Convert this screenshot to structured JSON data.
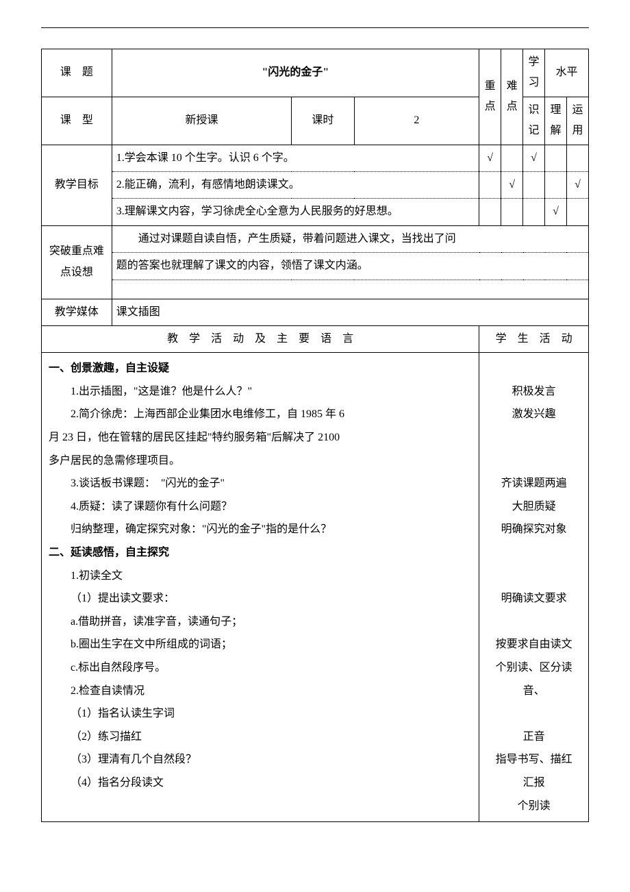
{
  "header": {
    "keti_label": "课　题",
    "title": "\"闪光的金子\"",
    "kexing_label": "课　型",
    "kexing_value": "新授课",
    "keshi_label": "课时",
    "keshi_value": "2",
    "zhongdian": "重点",
    "nandian": "难点",
    "xuexi": "学习",
    "shuiping": "水平",
    "shiji": "识记",
    "lijie": "理解",
    "yunyong": "运用"
  },
  "goals": {
    "label": "教学目标",
    "items": [
      {
        "text": "1.学会本课 10 个生字。认识 6 个字。",
        "zd": "√",
        "nd": "",
        "sj": "√",
        "lj": "",
        "yy": ""
      },
      {
        "text": "2.能正确，流利，有感情地朗读课文。",
        "zd": "",
        "nd": "√",
        "sj": "",
        "lj": "",
        "yy": "√"
      },
      {
        "text": "3.理解课文内容，学习徐虎全心全意为人民服务的好思想。",
        "zd": "",
        "nd": "",
        "sj": "",
        "lj": "√",
        "yy": ""
      }
    ]
  },
  "breakthrough": {
    "label": "突破重点难点设想",
    "line1": "　　通过对课题自读自悟，产生质疑，带着问题进入课文，当找出了问",
    "line2": "题的答案也就理解了课文的内容，领悟了课文内涵。"
  },
  "media": {
    "label": "教学媒体",
    "value": "课文插图"
  },
  "columns": {
    "teach": "教　学　活　动　及　主　要　语　言",
    "student": "学　生　活　动"
  },
  "body": {
    "left": [
      {
        "cls": "section-title",
        "text": "一、创景激趣，自主设疑"
      },
      {
        "cls": "indent1",
        "text": "1.出示插图，\"这是谁？他是什么人？\""
      },
      {
        "cls": "indent1",
        "text": "2.简介徐虎：上海西部企业集团水电维修工，自 1985 年 6"
      },
      {
        "cls": "",
        "text": "月 23 日，他在管辖的居民区挂起\"特约服务箱\"后解决了 2100"
      },
      {
        "cls": "",
        "text": "多户居民的急需修理项目。"
      },
      {
        "cls": "indent1",
        "text": "3.谈话板书课题：　\"闪光的金子\""
      },
      {
        "cls": "indent1",
        "text": "4.质疑：读了课题你有什么问题？"
      },
      {
        "cls": "indent1",
        "text": "归纳整理，确定探究对象：\"闪光的金子\"指的是什么？"
      },
      {
        "cls": "section-title",
        "text": "二、延读感悟，自主探究"
      },
      {
        "cls": "indent1",
        "text": "1.初读全文"
      },
      {
        "cls": "indent1",
        "text": "（1）提出读文要求："
      },
      {
        "cls": "indent1",
        "text": "a.借助拼音，读准字音，读通句子；"
      },
      {
        "cls": "indent1",
        "text": "b.圈出生字在文中所组成的词语；"
      },
      {
        "cls": "indent1",
        "text": "c.标出自然段序号。"
      },
      {
        "cls": "indent1",
        "text": "2.检查自读情况"
      },
      {
        "cls": "indent1",
        "text": "（1）指名认读生字词"
      },
      {
        "cls": "indent1",
        "text": "（2）练习描红"
      },
      {
        "cls": "indent1",
        "text": "（3）理清有几个自然段？"
      },
      {
        "cls": "indent1",
        "text": "（4）指名分段读文"
      }
    ],
    "right": [
      "",
      "积极发言",
      "激发兴趣",
      "",
      "",
      "齐读课题两遍",
      "大胆质疑",
      "明确探究对象",
      "",
      "",
      "明确读文要求",
      "",
      "按要求自由读文",
      "个别读、区分读音、",
      "",
      "正音",
      "指导书写、描红",
      "汇报",
      "个别读"
    ]
  }
}
